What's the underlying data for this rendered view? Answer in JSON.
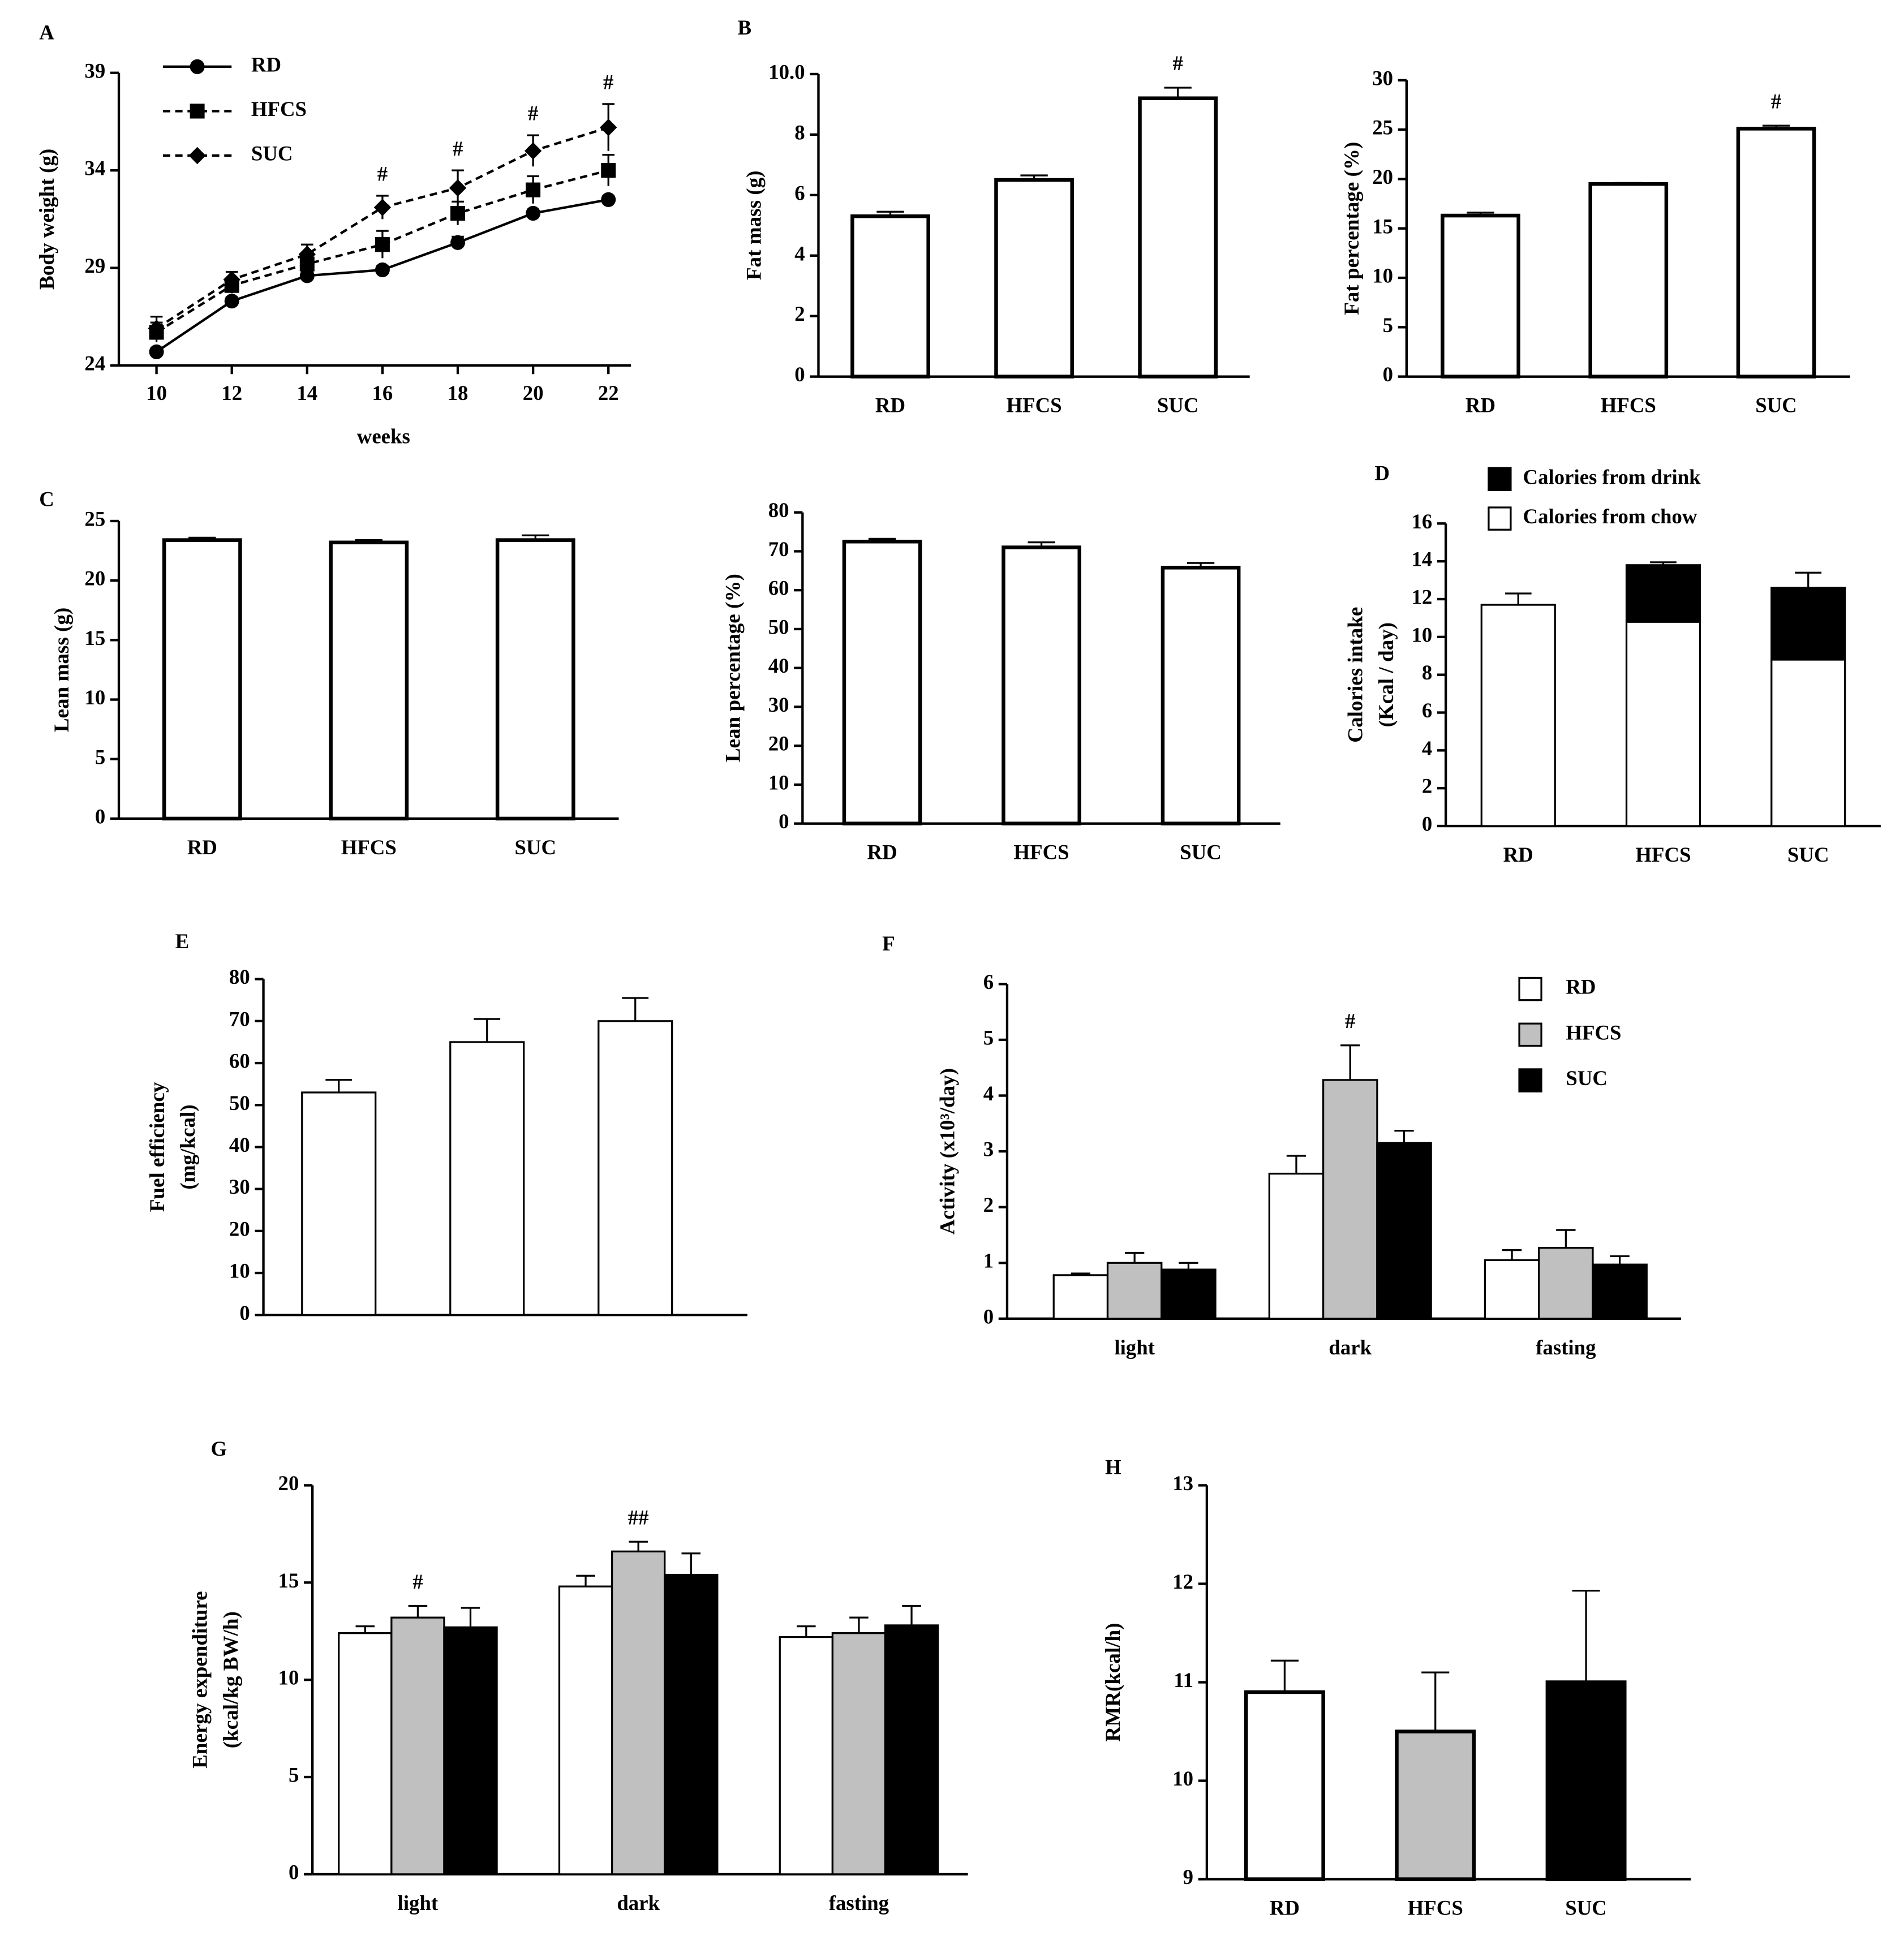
{
  "chart_data": [
    {
      "type": "line",
      "panel": "A",
      "ylabel": [
        "Body weight (g)"
      ],
      "xlabel": "weeks",
      "x": [
        10,
        12,
        14,
        16,
        18,
        20,
        22
      ],
      "xlim": [
        9,
        22.6
      ],
      "xticks": [
        10,
        12,
        14,
        16,
        18,
        20,
        22
      ],
      "ylim": [
        24,
        39
      ],
      "yticks": [
        24,
        29,
        34,
        39
      ],
      "series": [
        {
          "name": "RD",
          "color": "#000000",
          "marker": "circle",
          "dashed": false,
          "values": [
            24.7,
            27.3,
            28.6,
            28.9,
            30.3,
            31.8,
            32.5
          ],
          "errors": [
            0.2,
            0.2,
            0.2,
            0.2,
            0.3,
            0.2,
            0.2
          ]
        },
        {
          "name": "HFCS",
          "color": "#000000",
          "marker": "square",
          "dashed": true,
          "values": [
            25.7,
            28.1,
            29.2,
            30.2,
            31.8,
            33.0,
            34.0
          ],
          "errors": [
            0.5,
            0.4,
            0.4,
            0.7,
            0.6,
            0.7,
            0.8
          ]
        },
        {
          "name": "SUC",
          "color": "#000000",
          "marker": "diamond",
          "dashed": true,
          "values": [
            25.9,
            28.4,
            29.7,
            32.1,
            33.1,
            35.0,
            36.2
          ],
          "errors": [
            0.6,
            0.4,
            0.5,
            0.6,
            0.9,
            0.8,
            1.2
          ],
          "annotations": [
            null,
            null,
            null,
            "#",
            "#",
            "#",
            "#"
          ]
        }
      ]
    },
    {
      "type": "bar",
      "panel": "B",
      "ylabel": [
        "Fat mass (g)"
      ],
      "categories": [
        "RD",
        "HFCS",
        "SUC"
      ],
      "values": [
        5.3,
        6.5,
        9.2
      ],
      "errors": [
        0.15,
        0.15,
        0.35
      ],
      "annotations": [
        null,
        null,
        "#"
      ],
      "color": "#ffffff",
      "ylim": [
        0,
        10
      ],
      "yticks": [
        0,
        2,
        4,
        6,
        8,
        {
          "value": 10,
          "label": "10.0"
        }
      ]
    },
    {
      "type": "bar",
      "ylabel": [
        "Fat percentage (%)"
      ],
      "categories": [
        "RD",
        "HFCS",
        "SUC"
      ],
      "values": [
        16.3,
        19.5,
        25.1
      ],
      "errors": [
        0.3,
        0.1,
        0.3
      ],
      "annotations": [
        null,
        null,
        "#"
      ],
      "color": "#ffffff",
      "ylim": [
        0,
        30
      ],
      "yticks": [
        0,
        5,
        10,
        15,
        20,
        25,
        30
      ]
    },
    {
      "type": "bar",
      "panel": "C",
      "ylabel": [
        "Lean mass (g)"
      ],
      "categories": [
        "RD",
        "HFCS",
        "SUC"
      ],
      "values": [
        23.4,
        23.2,
        23.4
      ],
      "errors": [
        0.2,
        0.2,
        0.4
      ],
      "color": "#ffffff",
      "ylim": [
        0,
        25
      ],
      "yticks": [
        0,
        5,
        10,
        15,
        20,
        25
      ]
    },
    {
      "type": "bar",
      "ylabel": [
        "Lean percentage (%)"
      ],
      "categories": [
        "RD",
        "HFCS",
        "SUC"
      ],
      "values": [
        72.5,
        71.0,
        65.8
      ],
      "errors": [
        0.7,
        1.3,
        1.2
      ],
      "color": "#ffffff",
      "ylim": [
        0,
        80
      ],
      "yticks": [
        0,
        10,
        20,
        30,
        40,
        50,
        60,
        70,
        80
      ]
    },
    {
      "type": "bar",
      "stacked": true,
      "panel": "D",
      "ylabel": [
        "Calories intake",
        "(Kcal / day)"
      ],
      "categories": [
        "RD",
        "HFCS",
        "SUC"
      ],
      "series": [
        {
          "name": "Calories from chow",
          "color": "#ffffff",
          "values": [
            11.7,
            10.8,
            8.8
          ]
        },
        {
          "name": "Calories from drink",
          "color": "#000000",
          "values": [
            0,
            3.0,
            3.8
          ],
          "errors": [
            0.6,
            0.15,
            0.8
          ]
        }
      ],
      "ylim": [
        0,
        16
      ],
      "yticks": [
        0,
        2,
        4,
        6,
        8,
        10,
        12,
        14,
        16
      ]
    },
    {
      "type": "bar",
      "panel": "E",
      "ylabel": [
        "Fuel efficiency",
        "(mg/kcal)"
      ],
      "categories": [
        null,
        null,
        null
      ],
      "values": [
        53,
        65,
        70
      ],
      "errors": [
        3,
        5.5,
        5.5
      ],
      "color": "#ffffff",
      "ylim": [
        0,
        80
      ],
      "yticks": [
        0,
        10,
        20,
        30,
        40,
        50,
        60,
        70,
        80
      ]
    },
    {
      "type": "bar",
      "panel": "F",
      "ylabel": [
        "Activity (x10³/day)"
      ],
      "categories": [
        "light",
        "dark",
        "fasting"
      ],
      "series": [
        {
          "name": "RD",
          "color": "#ffffff",
          "values": [
            0.78,
            2.6,
            1.05
          ],
          "errors": [
            0.03,
            0.32,
            0.18
          ]
        },
        {
          "name": "HFCS",
          "color": "#c0c0c0",
          "values": [
            1.0,
            4.28,
            1.27
          ],
          "errors": [
            0.18,
            0.62,
            0.32
          ],
          "annotations": [
            null,
            "#",
            null
          ]
        },
        {
          "name": "SUC",
          "color": "#000000",
          "values": [
            0.88,
            3.15,
            0.97
          ],
          "errors": [
            0.12,
            0.22,
            0.15
          ]
        }
      ],
      "ylim": [
        0,
        6
      ],
      "yticks": [
        0,
        1,
        2,
        3,
        4,
        5,
        6
      ]
    },
    {
      "type": "bar",
      "panel": "G",
      "ylabel": [
        "Energy expenditure",
        "(kcal/kg  BW/h)"
      ],
      "categories": [
        "light",
        "dark",
        "fasting"
      ],
      "series": [
        {
          "name": "RD",
          "color": "#ffffff",
          "values": [
            12.4,
            14.8,
            12.2
          ],
          "errors": [
            0.35,
            0.55,
            0.55
          ]
        },
        {
          "name": "HFCS",
          "color": "#c0c0c0",
          "values": [
            13.2,
            16.6,
            12.4
          ],
          "errors": [
            0.6,
            0.5,
            0.8
          ],
          "annotations": [
            "#",
            "##",
            null
          ]
        },
        {
          "name": "SUC",
          "color": "#000000",
          "values": [
            12.7,
            15.4,
            12.8
          ],
          "errors": [
            1.0,
            1.1,
            1.0
          ]
        }
      ],
      "ylim": [
        0,
        20
      ],
      "yticks": [
        0,
        5,
        10,
        15,
        20
      ]
    },
    {
      "type": "bar",
      "panel": "H",
      "ylabel": [
        "RMR(kcal/h)"
      ],
      "categories": [
        "RD",
        "HFCS",
        "SUC"
      ],
      "values": [
        10.9,
        10.5,
        11.0
      ],
      "errors": [
        0.32,
        0.6,
        0.93
      ],
      "colors": [
        "#ffffff",
        "#c0c0c0",
        "#000000"
      ],
      "ylim": [
        9,
        13
      ],
      "yticks": [
        9,
        10,
        11,
        12,
        13
      ]
    }
  ]
}
